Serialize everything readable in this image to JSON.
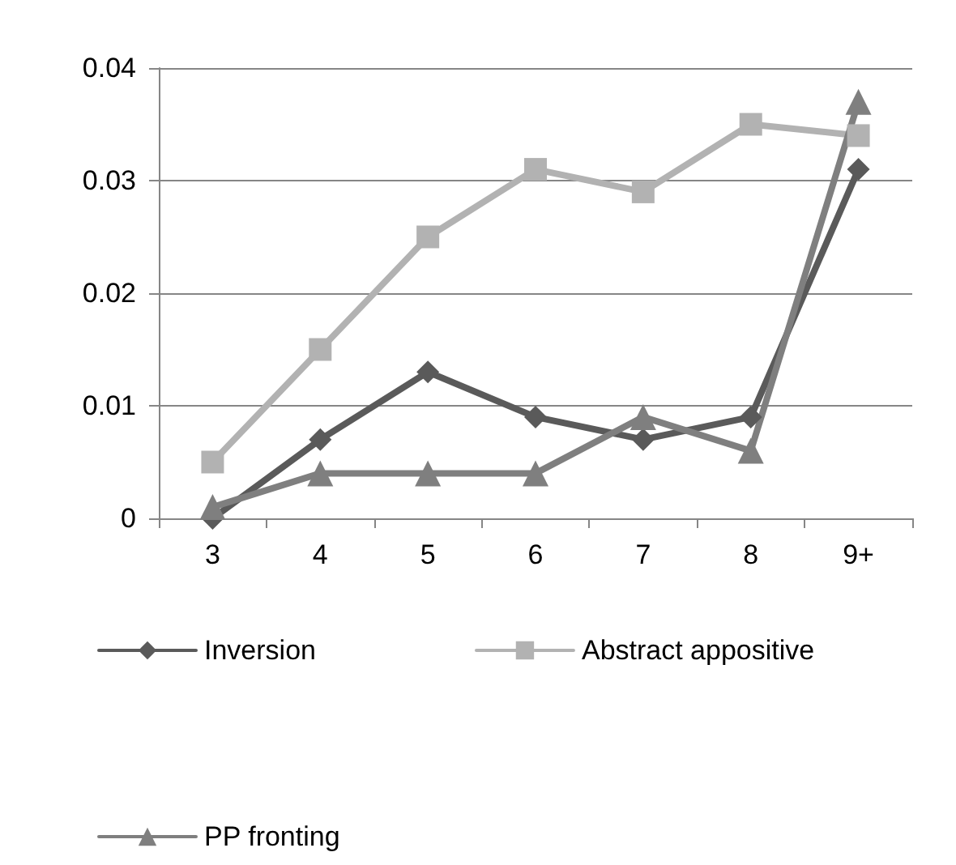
{
  "chart_data": {
    "type": "line",
    "categories": [
      "3",
      "4",
      "5",
      "6",
      "7",
      "8",
      "9+"
    ],
    "series": [
      {
        "name": "Inversion",
        "color": "#5a5a5a",
        "marker": "diamond",
        "values": [
          0,
          0.007,
          0.013,
          0.009,
          0.007,
          0.009,
          0.031
        ]
      },
      {
        "name": "Abstract appositive",
        "color": "#b2b2b2",
        "marker": "square",
        "values": [
          0.005,
          0.015,
          0.025,
          0.031,
          0.029,
          0.035,
          0.034
        ]
      },
      {
        "name": "PP fronting",
        "color": "#7f7f7f",
        "marker": "triangle",
        "values": [
          0.001,
          0.004,
          0.004,
          0.004,
          0.009,
          0.006,
          0.037
        ]
      }
    ],
    "ylim": [
      0,
      0.04
    ],
    "yticks": [
      0,
      0.01,
      0.02,
      0.03,
      0.04
    ],
    "grid": "y",
    "legend": "bottom",
    "line_style": "solid"
  }
}
